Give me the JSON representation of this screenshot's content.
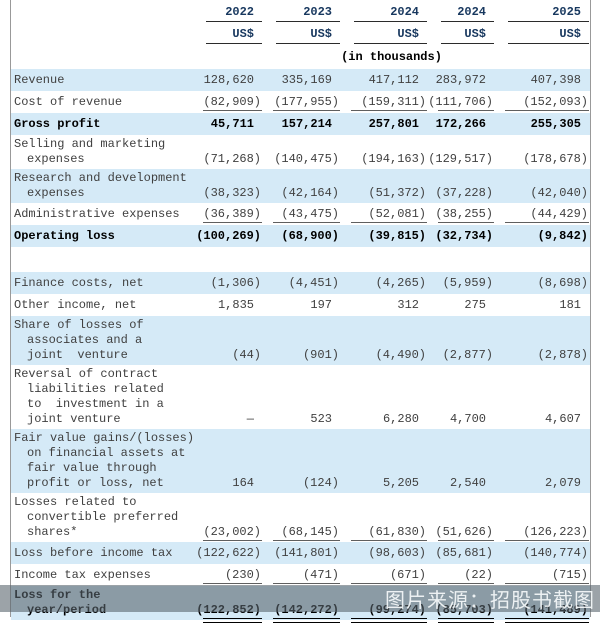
{
  "header": {
    "columns": [
      "2022",
      "2023",
      "2024",
      "2024",
      "2025"
    ],
    "currency": "US$",
    "unit_note": "(in thousands)"
  },
  "colors": {
    "row_highlight": "#d5eaf7",
    "header_text": "#17375e",
    "body_text": "#404040",
    "watermark_bar": "rgba(90,101,110,0.60)"
  },
  "table": {
    "rows": [
      {
        "label": [
          "Revenue"
        ],
        "values": [
          "128,620",
          "335,169",
          "417,112",
          "283,972",
          "407,398"
        ],
        "highlight": true,
        "bold": false,
        "rule": "none"
      },
      {
        "label": [
          "Cost of revenue"
        ],
        "values": [
          "(82,909)",
          "(177,955)",
          "(159,311)",
          "(111,706)",
          "(152,093)"
        ],
        "highlight": false,
        "bold": false,
        "rule": "single"
      },
      {
        "label": [
          "Gross profit"
        ],
        "values": [
          "45,711",
          "157,214",
          "257,801",
          "172,266",
          "255,305"
        ],
        "highlight": true,
        "bold": true,
        "rule": "none"
      },
      {
        "label": [
          "Selling and marketing",
          "expenses"
        ],
        "values": [
          "(71,268)",
          "(140,475)",
          "(194,163)",
          "(129,517)",
          "(178,678)"
        ],
        "highlight": false,
        "bold": false,
        "rule": "none"
      },
      {
        "label": [
          "Research and development",
          "expenses"
        ],
        "values": [
          "(38,323)",
          "(42,164)",
          "(51,372)",
          "(37,228)",
          "(42,040)"
        ],
        "highlight": true,
        "bold": false,
        "rule": "none"
      },
      {
        "label": [
          "Administrative expenses"
        ],
        "values": [
          "(36,389)",
          "(43,475)",
          "(52,081)",
          "(38,255)",
          "(44,429)"
        ],
        "highlight": false,
        "bold": false,
        "rule": "single"
      },
      {
        "label": [
          "Operating loss"
        ],
        "values": [
          "(100,269)",
          "(68,900)",
          "(39,815)",
          "(32,734)",
          "(9,842)"
        ],
        "highlight": true,
        "bold": true,
        "rule": "none"
      },
      {
        "spacer": true
      },
      {
        "label": [
          "Finance costs, net"
        ],
        "values": [
          "(1,306)",
          "(4,451)",
          "(4,265)",
          "(5,959)",
          "(8,698)"
        ],
        "highlight": true,
        "bold": false,
        "rule": "none"
      },
      {
        "label": [
          "Other income, net"
        ],
        "values": [
          "1,835",
          "197",
          "312",
          "275",
          "181"
        ],
        "highlight": false,
        "bold": false,
        "rule": "none"
      },
      {
        "label": [
          "Share of losses of",
          "associates and a",
          "joint  venture"
        ],
        "values": [
          "(44)",
          "(901)",
          "(4,490)",
          "(2,877)",
          "(2,878)"
        ],
        "highlight": true,
        "bold": false,
        "rule": "none"
      },
      {
        "label": [
          "Reversal of contract",
          "liabilities related",
          "to  investment in a",
          "joint venture"
        ],
        "values": [
          "—",
          "523",
          "6,280",
          "4,700",
          "4,607"
        ],
        "highlight": false,
        "bold": false,
        "rule": "none"
      },
      {
        "label": [
          "Fair value gains/(losses)",
          "on financial assets at",
          "fair value through",
          "profit or loss, net"
        ],
        "values": [
          "164",
          "(124)",
          "5,205",
          "2,540",
          "2,079"
        ],
        "highlight": true,
        "bold": false,
        "rule": "none"
      },
      {
        "label": [
          "Losses related to",
          "convertible preferred",
          "shares*"
        ],
        "values": [
          "(23,002)",
          "(68,145)",
          "(61,830)",
          "(51,626)",
          "(126,223)"
        ],
        "highlight": false,
        "bold": false,
        "rule": "single"
      },
      {
        "label": [
          "Loss before income tax"
        ],
        "values": [
          "(122,622)",
          "(141,801)",
          "(98,603)",
          "(85,681)",
          "(140,774)"
        ],
        "highlight": true,
        "bold": false,
        "rule": "none"
      },
      {
        "label": [
          "Income tax expenses"
        ],
        "values": [
          "(230)",
          "(471)",
          "(671)",
          "(22)",
          "(715)"
        ],
        "highlight": false,
        "bold": false,
        "rule": "single"
      },
      {
        "label": [
          "Loss for the",
          "year/period"
        ],
        "values": [
          "(122,852)",
          "(142,272)",
          "(99,274)",
          "(85,703)",
          "(141,489)"
        ],
        "highlight": true,
        "bold": true,
        "rule": "double"
      }
    ]
  },
  "watermark": {
    "text": "图片来源：招股书截图"
  }
}
